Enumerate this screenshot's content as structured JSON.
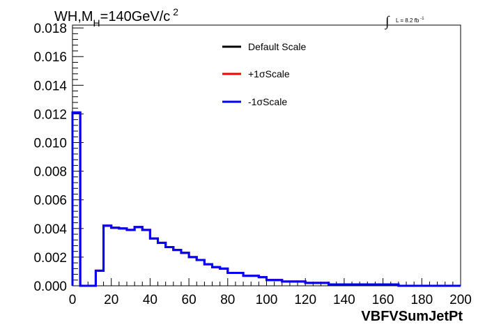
{
  "chart_data": {
    "type": "line",
    "title": {
      "main": "WH,M",
      "sub": "H",
      "rest": "=140GeV/c",
      "sup": "2"
    },
    "lumi": {
      "integral": "∫",
      "text": "L = 8.2 fb",
      "sup": "-1"
    },
    "xlabel": "VBFVSumJetPt",
    "ylabel": "",
    "xlim": [
      0,
      200
    ],
    "ylim": [
      0,
      0.0182
    ],
    "x_ticks": [
      "0",
      "20",
      "40",
      "60",
      "80",
      "100",
      "120",
      "140",
      "160",
      "180",
      "200"
    ],
    "y_ticks": [
      "0.000",
      "0.002",
      "0.004",
      "0.006",
      "0.008",
      "0.010",
      "0.012",
      "0.014",
      "0.016",
      "0.018"
    ],
    "grid": false,
    "legend_position": "top-center",
    "bin_edges": [
      0,
      4,
      8,
      12,
      16,
      20,
      24,
      28,
      32,
      36,
      40,
      44,
      48,
      52,
      56,
      60,
      64,
      68,
      72,
      76,
      80,
      84,
      88,
      92,
      96,
      100,
      104,
      108,
      112,
      116,
      120,
      124,
      128,
      132,
      136,
      140,
      144,
      148,
      152,
      156,
      160,
      164,
      168,
      172,
      176,
      180,
      184,
      188,
      192,
      196,
      200
    ],
    "series": [
      {
        "name": "Default Scale",
        "color": "#000000",
        "values": [
          0.0121,
          0.0,
          0.0,
          0.00105,
          0.0042,
          0.00405,
          0.004,
          0.0039,
          0.0041,
          0.0039,
          0.0033,
          0.003,
          0.0027,
          0.0025,
          0.0023,
          0.002,
          0.0018,
          0.0015,
          0.0013,
          0.0012,
          0.0009,
          0.0009,
          0.0007,
          0.0007,
          0.0006,
          0.0004,
          0.0004,
          0.0003,
          0.0003,
          0.0003,
          0.0002,
          0.0002,
          0.0002,
          0.0001,
          0.0001,
          0.0001,
          0.0001,
          0.0001,
          0.0001,
          0.0001,
          0.0001,
          0.0001,
          0.0,
          0.0,
          0.0,
          0.0,
          0.0,
          0.0,
          0.0,
          0.0
        ]
      },
      {
        "name": "+1σScale",
        "color": "#ff0000",
        "values": [
          0.0121,
          0.0,
          0.0,
          0.00105,
          0.0042,
          0.00405,
          0.004,
          0.0039,
          0.0041,
          0.0039,
          0.0033,
          0.003,
          0.0027,
          0.0025,
          0.0023,
          0.002,
          0.0018,
          0.0015,
          0.0013,
          0.0012,
          0.0009,
          0.0009,
          0.0007,
          0.0007,
          0.0006,
          0.0004,
          0.0004,
          0.0003,
          0.0003,
          0.0003,
          0.0002,
          0.0002,
          0.0002,
          0.0001,
          0.0001,
          0.0001,
          0.0001,
          0.0001,
          0.0001,
          0.0001,
          0.0001,
          0.0001,
          0.0,
          0.0,
          0.0,
          0.0,
          0.0,
          0.0,
          0.0,
          0.0
        ]
      },
      {
        "name": "-1σScale",
        "color": "#0000ff",
        "values": [
          0.0121,
          0.0,
          0.0,
          0.00105,
          0.0042,
          0.00405,
          0.004,
          0.0039,
          0.0041,
          0.0039,
          0.0033,
          0.003,
          0.0027,
          0.0025,
          0.0023,
          0.002,
          0.0018,
          0.0015,
          0.0013,
          0.0012,
          0.0009,
          0.0009,
          0.0007,
          0.0007,
          0.0006,
          0.0004,
          0.0004,
          0.0003,
          0.0003,
          0.0003,
          0.0002,
          0.0002,
          0.0002,
          0.0001,
          0.0001,
          0.0001,
          0.0001,
          0.0001,
          0.0001,
          0.0001,
          0.0001,
          0.0001,
          0.0,
          0.0,
          0.0,
          0.0,
          0.0,
          0.0,
          0.0,
          0.0
        ]
      }
    ]
  }
}
